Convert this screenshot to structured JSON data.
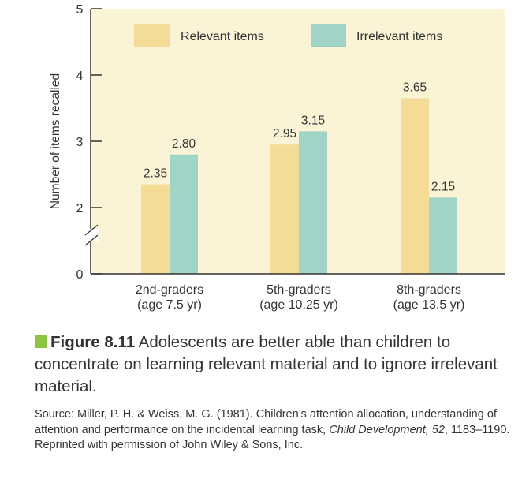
{
  "colors": {
    "plot_background": "#fbf3d6",
    "relevant": "#f5dc96",
    "irrelevant": "#a0d4c6",
    "axis": "#333333",
    "caption_square": "#8cc63f"
  },
  "chart_data": {
    "type": "bar",
    "categories": [
      [
        "2nd-graders",
        "(age 7.5 yr)"
      ],
      [
        "5th-graders",
        "(age 10.25 yr)"
      ],
      [
        "8th-graders",
        "(age 13.5 yr)"
      ]
    ],
    "series": [
      {
        "name": "Relevant items",
        "values": [
          2.35,
          2.95,
          3.65
        ],
        "labels": [
          "2.35",
          "2.95",
          "3.65"
        ]
      },
      {
        "name": "Irrelevant items",
        "values": [
          2.8,
          3.15,
          2.15
        ],
        "labels": [
          "2.80",
          "3.15",
          "2.15"
        ]
      }
    ],
    "ylabel": "Number of items recalled",
    "yticks": [
      "0",
      "2",
      "3",
      "4",
      "5"
    ],
    "ylim": [
      0,
      5
    ],
    "axis_break": true,
    "legend_position": "top"
  },
  "caption": {
    "label": "Figure 8.11",
    "text": " Adolescents are better able than children to concentrate on learning relevant material and to ignore irrelevant material."
  },
  "source": {
    "before": "Source: Miller, P. H. & Weiss, M. G. (1981). Children’s attention allocation, understanding of attention and performance on the incidental learning task, ",
    "journal": "Child Development, 52",
    "after": ", 1183–1190. Reprinted with permission of John Wiley & Sons, Inc."
  }
}
